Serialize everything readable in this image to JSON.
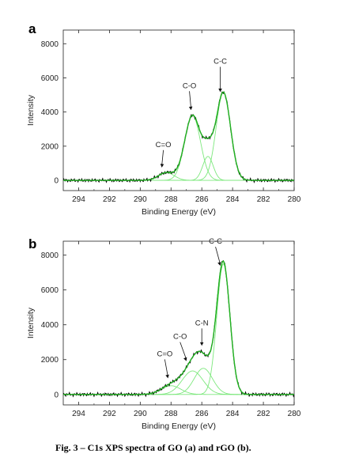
{
  "caption": "Fig. 3 – C1s XPS spectra of GO (a) and rGO (b).",
  "colors": {
    "experimental": "#000000",
    "fit_envelope": "#22b422",
    "components": "#7de87d"
  },
  "chart_data": [
    {
      "type": "line",
      "panel": "a",
      "xlabel": "Binding Energy (eV)",
      "ylabel": "Intensity",
      "xlim": [
        295,
        280
      ],
      "ylim": [
        -600,
        8800
      ],
      "x_ticks": [
        294,
        292,
        290,
        288,
        286,
        284,
        282,
        280
      ],
      "y_ticks": [
        0,
        2000,
        4000,
        6000,
        8000
      ],
      "components": [
        {
          "label": "C-C",
          "center": 284.6,
          "height": 5150,
          "fwhm": 1.1
        },
        {
          "label": "C-O",
          "center": 286.6,
          "height": 3800,
          "fwhm": 1.2
        },
        {
          "label": "",
          "center": 285.6,
          "height": 1400,
          "fwhm": 0.8
        },
        {
          "label": "C=O",
          "center": 288.3,
          "height": 450,
          "fwhm": 1.2
        }
      ],
      "annotations": [
        {
          "text": "C-C",
          "x": 284.8
        },
        {
          "text": "C-O",
          "x": 286.7
        },
        {
          "text": "C=O",
          "x": 288.6
        }
      ],
      "grid": false
    },
    {
      "type": "line",
      "panel": "b",
      "xlabel": "Binding Energy (eV)",
      "ylabel": "Intensity",
      "xlim": [
        295,
        280
      ],
      "ylim": [
        -600,
        8800
      ],
      "x_ticks": [
        294,
        292,
        290,
        288,
        286,
        284,
        282,
        280
      ],
      "y_ticks": [
        0,
        2000,
        4000,
        6000,
        8000
      ],
      "components": [
        {
          "label": "C-C",
          "center": 284.6,
          "height": 7500,
          "fwhm": 1.0
        },
        {
          "label": "C-N",
          "center": 285.9,
          "height": 1500,
          "fwhm": 1.4
        },
        {
          "label": "C-O",
          "center": 286.6,
          "height": 1350,
          "fwhm": 1.6
        },
        {
          "label": "C=O",
          "center": 288.0,
          "height": 500,
          "fwhm": 1.5
        }
      ],
      "annotations": [
        {
          "text": "C-C",
          "x": 284.8
        },
        {
          "text": "C-N",
          "x": 286.0
        },
        {
          "text": "C-O",
          "x": 287.0
        },
        {
          "text": "C=O",
          "x": 288.2
        }
      ],
      "grid": false
    }
  ]
}
